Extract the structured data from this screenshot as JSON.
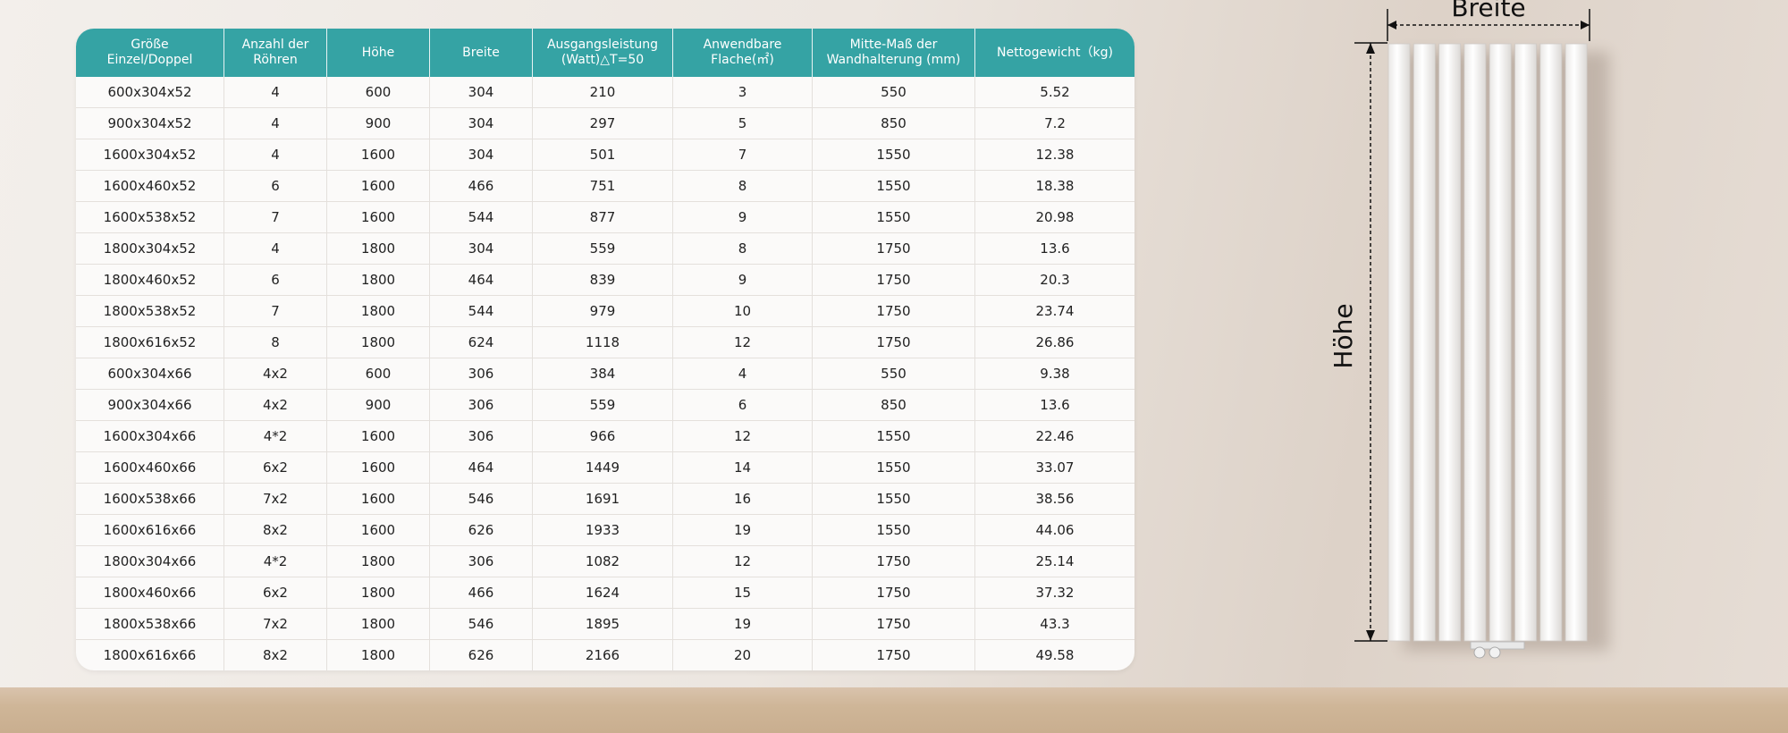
{
  "table": {
    "header": [
      "Größe\nEinzel/Doppel",
      "Anzahl der\nRöhren",
      "Höhe",
      "Breite",
      "Ausgangsleistung\n(Watt)△T=50",
      "Anwendbare\nFlache(㎡)",
      "Mitte-Maß der\nWandhalterung (mm)",
      "Nettogewicht（kg)"
    ],
    "rows": [
      [
        "600x304x52",
        "4",
        "600",
        "304",
        "210",
        "3",
        "550",
        "5.52"
      ],
      [
        "900x304x52",
        "4",
        "900",
        "304",
        "297",
        "5",
        "850",
        "7.2"
      ],
      [
        "1600x304x52",
        "4",
        "1600",
        "304",
        "501",
        "7",
        "1550",
        "12.38"
      ],
      [
        "1600x460x52",
        "6",
        "1600",
        "466",
        "751",
        "8",
        "1550",
        "18.38"
      ],
      [
        "1600x538x52",
        "7",
        "1600",
        "544",
        "877",
        "9",
        "1550",
        "20.98"
      ],
      [
        "1800x304x52",
        "4",
        "1800",
        "304",
        "559",
        "8",
        "1750",
        "13.6"
      ],
      [
        "1800x460x52",
        "6",
        "1800",
        "464",
        "839",
        "9",
        "1750",
        "20.3"
      ],
      [
        "1800x538x52",
        "7",
        "1800",
        "544",
        "979",
        "10",
        "1750",
        "23.74"
      ],
      [
        "1800x616x52",
        "8",
        "1800",
        "624",
        "1118",
        "12",
        "1750",
        "26.86"
      ],
      [
        "600x304x66",
        "4x2",
        "600",
        "306",
        "384",
        "4",
        "550",
        "9.38"
      ],
      [
        "900x304x66",
        "4x2",
        "900",
        "306",
        "559",
        "6",
        "850",
        "13.6"
      ],
      [
        "1600x304x66",
        "4*2",
        "1600",
        "306",
        "966",
        "12",
        "1550",
        "22.46"
      ],
      [
        "1600x460x66",
        "6x2",
        "1600",
        "464",
        "1449",
        "14",
        "1550",
        "33.07"
      ],
      [
        "1600x538x66",
        "7x2",
        "1600",
        "546",
        "1691",
        "16",
        "1550",
        "38.56"
      ],
      [
        "1600x616x66",
        "8x2",
        "1600",
        "626",
        "1933",
        "19",
        "1550",
        "44.06"
      ],
      [
        "1800x304x66",
        "4*2",
        "1800",
        "306",
        "1082",
        "12",
        "1750",
        "25.14"
      ],
      [
        "1800x460x66",
        "6x2",
        "1800",
        "466",
        "1624",
        "15",
        "1750",
        "37.32"
      ],
      [
        "1800x538x66",
        "7x2",
        "1800",
        "546",
        "1895",
        "19",
        "1750",
        "43.3"
      ],
      [
        "1800x616x66",
        "8x2",
        "1800",
        "626",
        "2166",
        "20",
        "1750",
        "49.58"
      ]
    ]
  },
  "diagram": {
    "width_label": "Breite",
    "height_label": "Höhe"
  }
}
